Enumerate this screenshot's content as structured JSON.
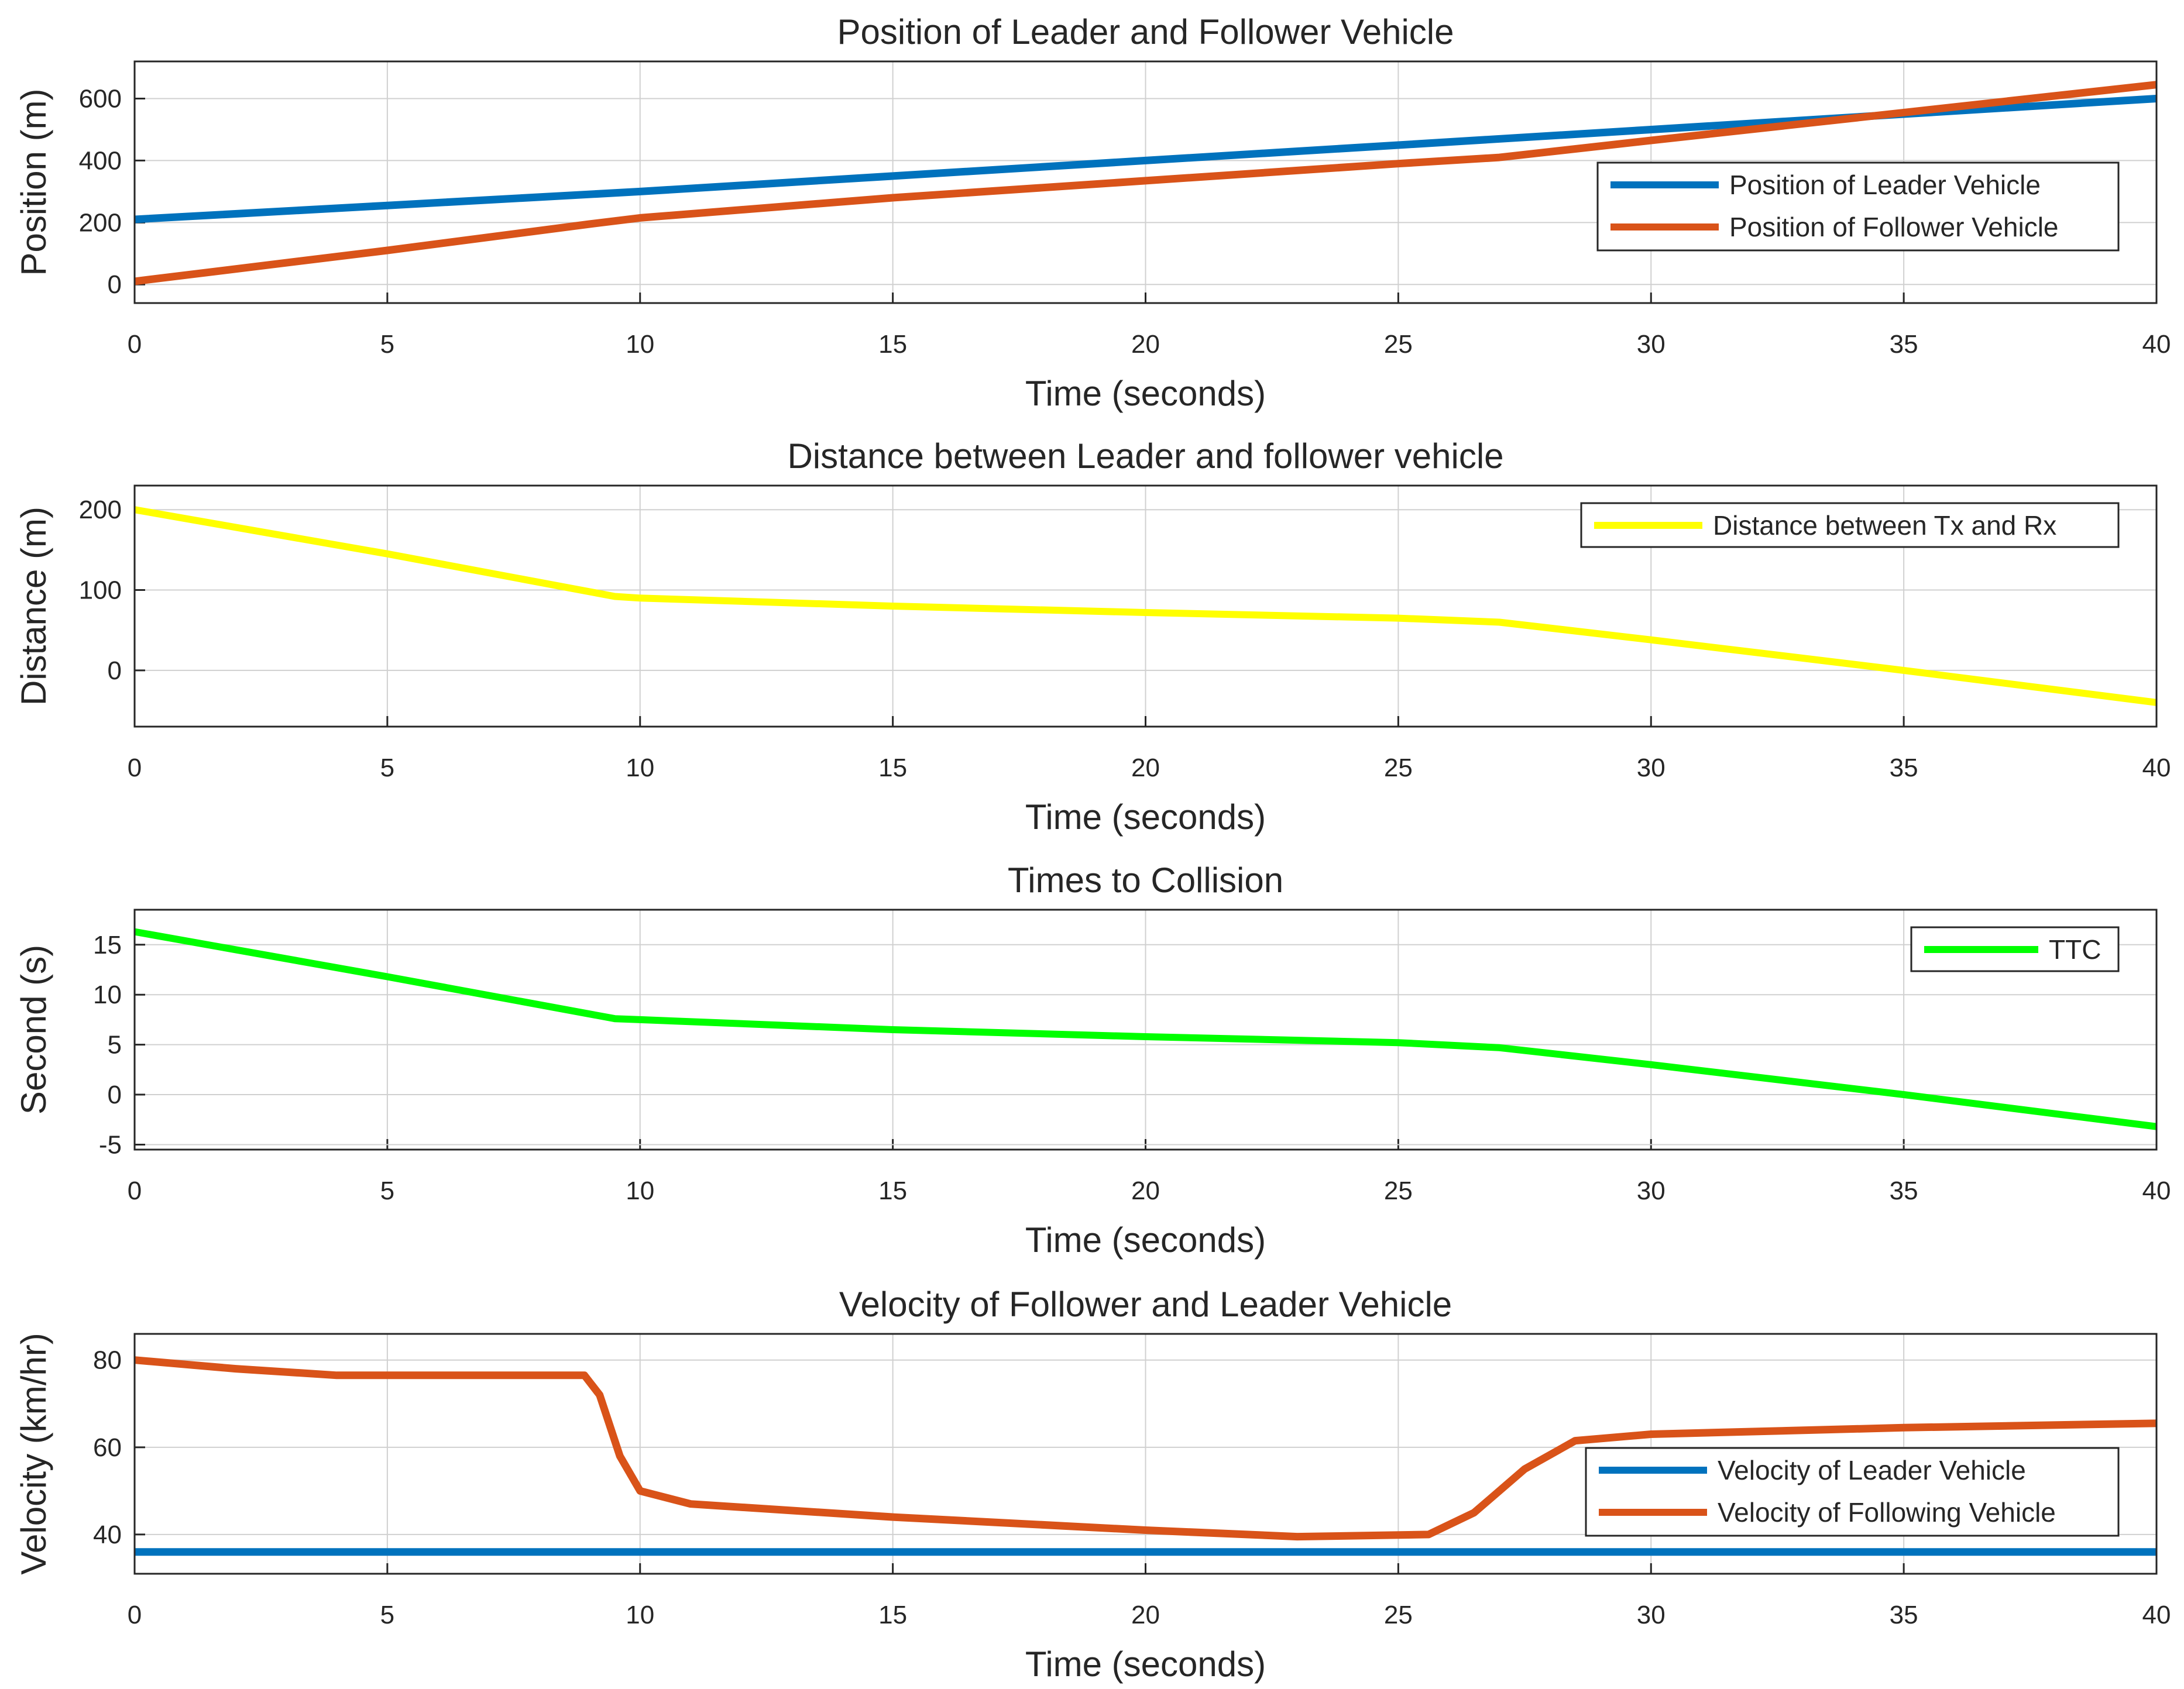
{
  "chart_data": [
    {
      "type": "line",
      "title": "Position of Leader and Follower Vehicle",
      "xlabel": "Time (seconds)",
      "ylabel": "Position (m)",
      "xlim": [
        0,
        40
      ],
      "ylim": [
        -60,
        720
      ],
      "xticks": [
        "0",
        "5",
        "10",
        "15",
        "20",
        "25",
        "30",
        "35",
        "40"
      ],
      "yticks": [
        "0",
        "200",
        "400",
        "600"
      ],
      "grid": true,
      "legend_position": "right",
      "series": [
        {
          "name": "Position of Leader Vehicle",
          "color": "#0072bd",
          "x": [
            0,
            5,
            10,
            15,
            20,
            25,
            30,
            35,
            40
          ],
          "y": [
            210,
            255,
            300,
            350,
            400,
            450,
            500,
            550,
            600
          ]
        },
        {
          "name": "Position of Follower Vehicle",
          "color": "#d95319",
          "x": [
            0,
            5,
            9,
            10,
            15,
            20,
            25,
            27,
            30,
            35,
            40
          ],
          "y": [
            10,
            110,
            195,
            215,
            280,
            335,
            390,
            410,
            465,
            555,
            645
          ]
        }
      ]
    },
    {
      "type": "line",
      "title": "Distance between Leader and follower vehicle",
      "xlabel": "Time (seconds)",
      "ylabel": "Distance (m)",
      "xlim": [
        0,
        40
      ],
      "ylim": [
        -70,
        230
      ],
      "xticks": [
        "0",
        "5",
        "10",
        "15",
        "20",
        "25",
        "30",
        "35",
        "40"
      ],
      "yticks": [
        "0",
        "100",
        "200"
      ],
      "grid": true,
      "legend_position": "top-right",
      "series": [
        {
          "name": "Distance between Tx and Rx",
          "color": "#ffff00",
          "x": [
            0,
            5,
            9.5,
            10,
            15,
            20,
            25,
            27,
            30,
            35,
            40
          ],
          "y": [
            200,
            145,
            92,
            90,
            80,
            72,
            65,
            60,
            38,
            0,
            -40
          ]
        }
      ]
    },
    {
      "type": "line",
      "title": "Times to Collision",
      "xlabel": "Time (seconds)",
      "ylabel": "Second (s)",
      "xlim": [
        0,
        40
      ],
      "ylim": [
        -5.5,
        18.5
      ],
      "xticks": [
        "0",
        "5",
        "10",
        "15",
        "20",
        "25",
        "30",
        "35",
        "40"
      ],
      "yticks": [
        "-5",
        "0",
        "5",
        "10",
        "15"
      ],
      "grid": true,
      "legend_position": "top-right",
      "series": [
        {
          "name": "TTC",
          "color": "#00ff00",
          "x": [
            0,
            5,
            9.5,
            10,
            15,
            20,
            25,
            27,
            30,
            35,
            40
          ],
          "y": [
            16.3,
            11.8,
            7.6,
            7.5,
            6.5,
            5.8,
            5.2,
            4.7,
            3.0,
            0,
            -3.2
          ]
        }
      ]
    },
    {
      "type": "line",
      "title": "Velocity of Follower and Leader Vehicle",
      "xlabel": "Time (seconds)",
      "ylabel": "Velocity (km/hr)",
      "xlim": [
        0,
        40
      ],
      "ylim": [
        31,
        86
      ],
      "xticks": [
        "0",
        "5",
        "10",
        "15",
        "20",
        "25",
        "30",
        "35",
        "40"
      ],
      "yticks": [
        "40",
        "60",
        "80"
      ],
      "grid": true,
      "legend_position": "right",
      "series": [
        {
          "name": "Velocity of Leader Vehicle",
          "color": "#0072bd",
          "x": [
            0,
            40
          ],
          "y": [
            36,
            36
          ]
        },
        {
          "name": "Velocity of Following Vehicle",
          "color": "#d95319",
          "x": [
            0,
            2,
            4,
            8.9,
            9.2,
            9.6,
            10,
            11,
            15,
            20,
            23,
            25.6,
            26.5,
            27.5,
            28.5,
            30,
            35,
            40
          ],
          "y": [
            80,
            78,
            76.5,
            76.5,
            72,
            58,
            50,
            47,
            44,
            41,
            39.5,
            40,
            45,
            55,
            61.5,
            63,
            64.5,
            65.5
          ]
        }
      ]
    }
  ]
}
